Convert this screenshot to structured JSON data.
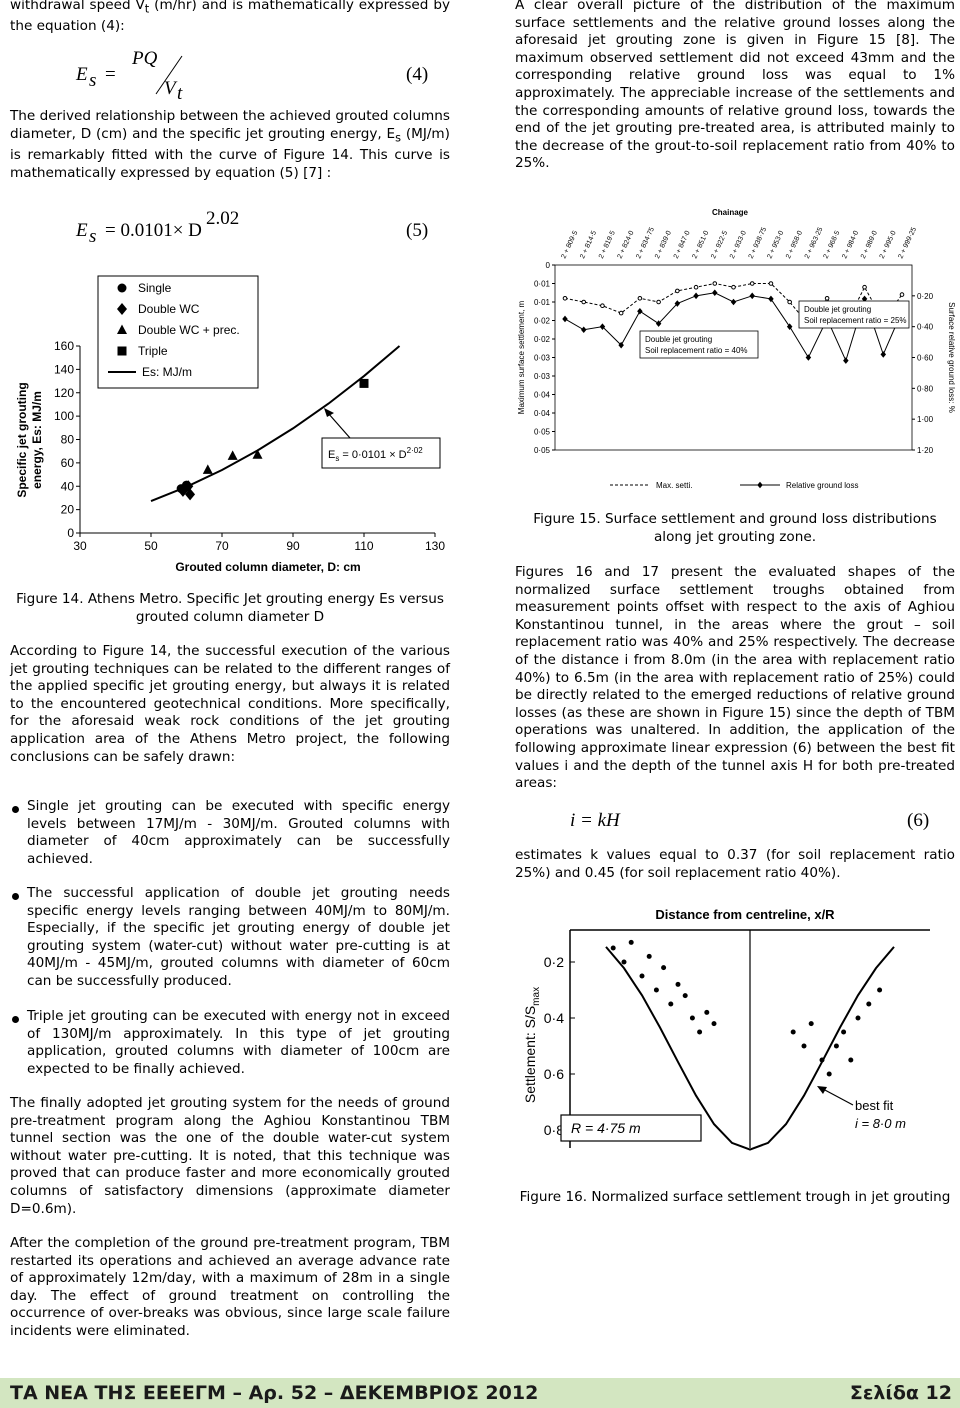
{
  "left": {
    "p1": {
      "a": "withdrawal speed V",
      "sub": "t",
      "b": " (m/hr) and is mathematically expressed by the equation (4):"
    },
    "eq4": {
      "lhs": "E",
      "lhs_sub": "s",
      "eq": "=",
      "num": "PQ",
      "den": "V",
      "den_sub": "t",
      "number": "(4)"
    },
    "p2": {
      "a": "The derived relationship between the achieved grouted columns diameter, D (cm) and the specific jet grouting energy, E",
      "sub": "s",
      "b": " (MJ/m) is remarkably fitted with the curve of Figure 14. This curve is mathematically expressed by equation (5) [7] :"
    },
    "eq5": {
      "lhs": "E",
      "lhs_sub": "s",
      "rhs": "= 0.0101× D",
      "exp": "2.02",
      "number": "(5)"
    },
    "fig14": {
      "type": "scatter",
      "x_label": "Grouted column diameter, D: cm",
      "y_label": [
        "Specific jet grouting",
        "energy, Es: MJ/m"
      ],
      "xlim": [
        30,
        130
      ],
      "xticks": [
        30,
        50,
        70,
        90,
        110,
        130
      ],
      "ylim": [
        0,
        160
      ],
      "yticks": [
        0,
        20,
        40,
        60,
        80,
        100,
        120,
        140,
        160
      ],
      "series": [
        {
          "name": "Single",
          "marker": "circle",
          "color": "#000000",
          "x": [
            58.5,
            60
          ],
          "y": [
            38,
            41
          ]
        },
        {
          "name": "Double WC",
          "marker": "diamond",
          "color": "#000000",
          "x": [
            59,
            60.5,
            61
          ],
          "y": [
            36,
            40,
            33
          ]
        },
        {
          "name": "Double WC + prec.",
          "marker": "triangle",
          "color": "#000000",
          "x": [
            66,
            73,
            80
          ],
          "y": [
            54,
            66,
            67
          ]
        },
        {
          "name": "Triple",
          "marker": "square",
          "color": "#000000",
          "x": [
            110
          ],
          "y": [
            128
          ]
        }
      ],
      "curve": {
        "name": "Es: MJ/m",
        "color": "#000000",
        "x": [
          50,
          60,
          70,
          80,
          90,
          100,
          110,
          120
        ],
        "y": [
          27.3,
          39.5,
          53.9,
          70.6,
          89.5,
          110.7,
          134.3,
          160
        ]
      },
      "annotation": [
        "E",
        "s",
        " = 0·0101 × D",
        "2·02"
      ]
    },
    "fig14_caption": "Figure 14. Athens Metro. Specific Jet grouting energy Es versus grouted column diameter D",
    "p3": "According to Figure 14, the successful execution of the various jet grouting techniques can be related to the different ranges of the applied specific jet grouting energy, but always it is related to the encountered geotechnical conditions. More specifically, for the aforesaid weak rock conditions of the jet grouting application area of the Athens Metro project, the following conclusions can be safely drawn:",
    "bullets": [
      "Single jet grouting can be executed with specific energy levels between 17MJ/m - 30MJ/m. Grouted columns with diameter of 40cm approximately can be successfully achieved.",
      "The successful application of double jet grouting needs specific energy levels ranging between 40MJ/m to 80MJ/m. Especially, if the specific jet grouting energy of double jet grouting system (water-cut) without water pre-cutting is at 40MJ/m - 45MJ/m, grouted columns with diameter of 60cm can be successfully produced.",
      "Triple jet grouting can be executed with energy not in exceed of 130MJ/m approximately. In this type of jet grouting application, grouted columns with diameter of 100cm are expected to be finally achieved."
    ],
    "p4": "The finally adopted jet grouting system for the needs of ground pre-treatment program along the Aghiou Konstantinou TBM tunnel section was the one of the double water-cut system without water pre-cutting. It is noted, that this technique was proved that can produce faster and more economically grouted columns of satisfactory dimensions (approximate diameter D=0.6m).",
    "p5": "After the completion of the ground pre-treatment program, TBM restarted its operations and achieved an average advance rate of approximately 12m/day, with a maximum of 28m in a single day. The effect of ground treatment on controlling the occurrence of over-breaks was obvious, since large scale failure incidents were eliminated."
  },
  "right": {
    "p1": "A clear overall picture of the distribution of the maximum surface settlements and the relative ground losses along the aforesaid jet grouting zone is given in Figure 15 [8]. The maximum observed settlement did not exceed 43mm and the corresponding relative ground loss was equal to 1% approximately. The appreciable increase of the settlements and the corresponding amounts of relative ground loss, towards the end of the jet grouting pre-treated area, is attributed mainly to the decrease of the grout-to-soil replacement ratio from 40% to 25%.",
    "fig15": {
      "type": "line",
      "title": "Chainage",
      "categories": [
        "2 + 809·5",
        "2 + 814·5",
        "2 + 819·5",
        "2 + 824·0",
        "2 + 834·75",
        "2 + 839·0",
        "2 + 847·0",
        "2 + 851·0",
        "2 + 922·5",
        "2 + 933·0",
        "2 + 938·75",
        "2 + 953·0",
        "2 + 958·0",
        "2 + 963·25",
        "2 + 968·5",
        "2 + 984·0",
        "2 + 989·0",
        "2 + 995·0",
        "2 + 999·25"
      ],
      "y_label": "Maximum surface settlement, m",
      "y2_label": "Surface relative ground loss: %",
      "ylim": [
        0,
        0.05
      ],
      "yticks": [
        0,
        {
          "value": 0.005,
          "label": "0·01"
        },
        {
          "value": 0.01,
          "label": "0·01"
        },
        {
          "value": 0.015,
          "label": "0·02"
        },
        {
          "value": 0.02,
          "label": "0·02"
        },
        {
          "value": 0.025,
          "label": "0·03"
        },
        {
          "value": 0.03,
          "label": "0·03"
        },
        {
          "value": 0.035,
          "label": "0·04"
        },
        {
          "value": 0.04,
          "label": "0·04"
        },
        {
          "value": 0.045,
          "label": "0·05"
        },
        {
          "value": 0.05,
          "label": "0·05"
        }
      ],
      "y2lim": [
        0,
        1.2
      ],
      "y2ticks": [
        {
          "value": 0.2,
          "label": "0·20"
        },
        {
          "value": 0.4,
          "label": "0·40"
        },
        {
          "value": 0.6,
          "label": "0·60"
        },
        {
          "value": 0.8,
          "label": "0·80"
        },
        {
          "value": 1.0,
          "label": "1·00"
        },
        {
          "value": 1.2,
          "label": "1·20"
        }
      ],
      "series": [
        {
          "name": "Max. setti.",
          "color": "#000000",
          "dashed": true,
          "values": [
            0.009,
            0.01,
            0.011,
            0.013,
            0.009,
            0.01,
            0.007,
            0.006,
            0.005,
            0.006,
            0.005,
            0.005,
            0.01,
            0.016,
            0.009,
            0.016,
            0.006,
            0.015,
            0.008
          ]
        },
        {
          "name": "Relative ground loss",
          "color": "#000000",
          "dashed": false,
          "axis": "y2",
          "values": [
            0.35,
            0.42,
            0.4,
            0.52,
            0.3,
            0.38,
            0.25,
            0.2,
            0.18,
            0.24,
            0.2,
            0.22,
            0.4,
            0.6,
            0.35,
            0.62,
            0.22,
            0.58,
            0.3
          ]
        }
      ],
      "boxes": [
        [
          "Double jet grouting",
          "Soil replacement ratio = 40%"
        ],
        [
          "Double jet grouting",
          "Soil replacement ratio = 25%"
        ]
      ]
    },
    "fig15_caption": "Figure 15. Surface settlement and ground loss distributions along jet grouting zone.",
    "p2": "Figures 16 and 17 present the evaluated shapes of the normalized surface settlement troughs obtained from measurement points offset with respect to the axis of Aghiou Konstantinou tunnel, in the areas where the grout – soil replacement ratio was 40% and 25% respectively. The decrease of the distance i from 8.0m (in the area with replacement ratio 40%) to 6.5m (in the area with replacement ratio of 25%) could be directly related to the emerged reductions of relative ground losses (as these are shown in Figure 15) since the depth of TBM operations was unaltered. In addition, the application of the following approximate linear expression (6) between the best fit values i and the depth of the tunnel axis H for both pre-treated areas:",
    "eq6": {
      "expr": "i = kH",
      "number": "(6)"
    },
    "p3": "estimates k values equal to 0.37 (for soil replacement ratio 25%) and 0.45 (for soil replacement ratio 40%).",
    "fig16": {
      "type": "scatter",
      "title": "Distance from centreline, x/R",
      "y_label": {
        "a": "Settlement: S/S",
        "sub": "max"
      },
      "xlim": [
        -5,
        5
      ],
      "ylim": [
        0.1,
        0.9
      ],
      "yticks": [
        {
          "value": 0.2,
          "label": "0·2"
        },
        {
          "value": 0.4,
          "label": "0·4"
        },
        {
          "value": 0.6,
          "label": "0·6"
        },
        {
          "value": 0.8,
          "label": "0·8"
        }
      ],
      "points": {
        "x": [
          -3.8,
          -3.5,
          -3.3,
          -3.0,
          -2.8,
          -2.6,
          -2.4,
          -2.2,
          -2.0,
          -1.8,
          -1.6,
          -1.4,
          -1.2,
          -1.0,
          1.2,
          1.5,
          1.7,
          2.0,
          2.2,
          2.4,
          2.6,
          2.8,
          3.0,
          3.3,
          3.6
        ],
        "y": [
          0.15,
          0.2,
          0.13,
          0.25,
          0.18,
          0.3,
          0.22,
          0.35,
          0.28,
          0.32,
          0.4,
          0.45,
          0.38,
          0.42,
          0.45,
          0.5,
          0.42,
          0.55,
          0.6,
          0.5,
          0.45,
          0.55,
          0.4,
          0.35,
          0.3
        ]
      },
      "curve": {
        "x": [
          -4,
          -3.5,
          -3,
          -2.5,
          -2,
          -1.5,
          -1,
          -0.5,
          0,
          0.5,
          1,
          1.5,
          2,
          2.5,
          3,
          3.5,
          4
        ],
        "y": [
          0.146,
          0.222,
          0.319,
          0.434,
          0.557,
          0.677,
          0.779,
          0.846,
          0.87,
          0.846,
          0.779,
          0.677,
          0.557,
          0.434,
          0.319,
          0.222,
          0.146
        ]
      },
      "annotations": {
        "fit": "best fit",
        "i": "i = 8·0 m",
        "r": "R = 4·75 m"
      }
    },
    "fig16_caption": "Figure 16. Normalized surface settlement trough in jet grouting"
  },
  "footer": {
    "left": "ΤΑ ΝΕΑ ΤΗΣ ΕΕΕΕΓΜ – Αρ. 52 – ΔΕΚΕΜΒΡΙΟΣ 2012",
    "right": "Σελίδα 12"
  }
}
